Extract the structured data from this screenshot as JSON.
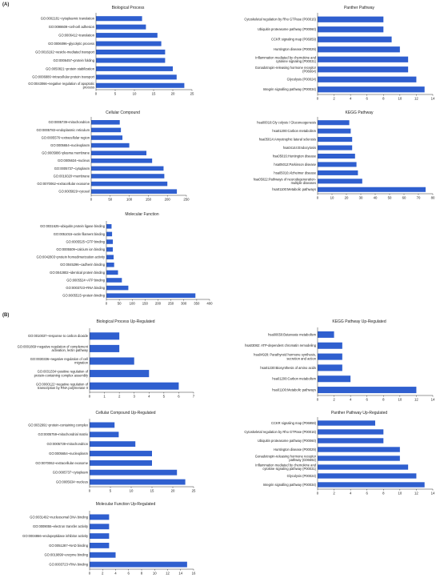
{
  "sections": {
    "a": "(A)",
    "b": "(B)"
  },
  "chart_data": [
    {
      "type": "bar",
      "orientation": "horizontal",
      "title": "Biological Process",
      "categories": [
        "GO:0002181~cytoplasmic translation",
        "GO:0098609~cell-cell adhesion",
        "GO:0006412~translation",
        "GO:0006096~glycolytic process",
        "GO:0016192~vesicle-mediated transport",
        "GO:0006457~protein folding",
        "GO:0050821~protein stabilization",
        "GO:0006886~intracellular protein transport",
        "GO:0043066~negative regulation of apoptotic process"
      ],
      "values": [
        12,
        13,
        16,
        17,
        18,
        18,
        20,
        21,
        23
      ],
      "ticks": [
        0,
        5,
        10,
        15,
        20,
        25
      ],
      "xlim": [
        0,
        25
      ],
      "color": "#2f5fcf"
    },
    {
      "type": "bar",
      "orientation": "horizontal",
      "title": "Panther Pathway",
      "categories": [
        "Cytoskeletal regulation by Rho GTPase (P00016)",
        "Ubiquitin proteasome pathway (P00060)",
        "CCKR signaling map (P06959)",
        "Huntington disease (P00029)",
        "Inflammation mediated by chemokine and cytokine signaling (P00031)",
        "Gonadotropin-releasing hormone receptor (P06664)",
        "Glycolysis (P00024)",
        "Integrin signalling pathway (P00034)"
      ],
      "values": [
        8,
        8,
        9,
        10,
        11,
        11,
        12,
        13
      ],
      "ticks": [
        0,
        2,
        4,
        6,
        8,
        10,
        12,
        14
      ],
      "xlim": [
        0,
        14
      ],
      "color": "#2f5fcf"
    },
    {
      "type": "bar",
      "orientation": "horizontal",
      "title": "Cellular Compound",
      "categories": [
        "GO:0005739~mitochondrion",
        "GO:0005783~endoplasmic reticulum",
        "GO:0005576~extracellular region",
        "GO:0005654~nucleoplasm",
        "GO:0005886~plasma membrane",
        "GO:0005634~nucleus",
        "GO:0005737~cytoplasm",
        "GO:0016020~membrane",
        "GO:0070062~extracellular exosome",
        "GO:0005829~cytosol"
      ],
      "values": [
        75,
        78,
        82,
        100,
        145,
        160,
        190,
        192,
        200,
        225
      ],
      "ticks": [
        0,
        50,
        100,
        150,
        200,
        250
      ],
      "xlim": [
        0,
        250
      ],
      "color": "#2f5fcf"
    },
    {
      "type": "bar",
      "orientation": "horizontal",
      "title": "KEGG Pathway",
      "categories": [
        "hsa00010:Gly colysis / Gluconeogenesis",
        "hsa01200:Carbon metabolism",
        "hsa05014:Amyotrophic lateral sclerosis",
        "hsa04144:Endocytosis",
        "hsa05016:Huntington disease",
        "hsa05012:Parkinson disease",
        "hsa05010:Alzheimer disease",
        "hsa05022:Pathways of neurodegeneration- multiple diseases",
        "hsa01100:Metabolic pathways"
      ],
      "values": [
        22,
        23,
        24,
        24,
        26,
        27,
        28,
        31,
        75
      ],
      "ticks": [
        0,
        10,
        20,
        30,
        40,
        50,
        60,
        70,
        80
      ],
      "xlim": [
        0,
        80
      ],
      "color": "#2f5fcf"
    },
    {
      "type": "bar",
      "orientation": "horizontal",
      "title": "Molecular Function",
      "categories": [
        "GO:0031625~ubiquitin protein ligase binding",
        "GO:0051015~actin filament binding",
        "GO:0005525~GTP binding",
        "GO:0005509~calcium ion binding",
        "GO:0042803~protein homodimerization activity",
        "GO:0045296~cadherin binding",
        "GO:0042802~identical protein binding",
        "GO:0005524~ATP binding",
        "GO:0003723~RNA binding",
        "GO:0005515~protein binding"
      ],
      "values": [
        20,
        22,
        25,
        25,
        28,
        30,
        45,
        60,
        85,
        345
      ],
      "ticks": [
        0,
        50,
        100,
        150,
        200,
        250,
        300,
        350,
        400
      ],
      "xlim": [
        0,
        400
      ],
      "color": "#2f5fcf"
    },
    {
      "type": "bar",
      "orientation": "horizontal",
      "title": "Biological Process Up-Regulated",
      "categories": [
        "GO:0010037~response to carbon dioxide",
        "GO:0001869~negative regulation of complement activation, lectin pathway",
        "GO:0030336~negative regulation of cell migration",
        "GO:0031334~positive regulation of protein-containing complex assembly",
        "GO:0000122~negative regulation of transcription by RNA polymerase II"
      ],
      "values": [
        2,
        2,
        3,
        4,
        6
      ],
      "ticks": [
        0,
        1,
        2,
        3,
        4,
        5,
        6,
        7
      ],
      "xlim": [
        0,
        7
      ],
      "color": "#2f5fcf"
    },
    {
      "type": "bar",
      "orientation": "horizontal",
      "title": "KEGG Pathway Up-Regulated",
      "categories": [
        "hsa00650:Butanoate metabolism",
        "hsa03082: ATP-dependent chromatin remodeling",
        "hsa04928: Parathyroid hormone synthesis, secretion and action",
        "hsa01230:Biosynthesis of amino acids",
        "hsa01200:Carbon metabolism",
        "hsa01100:Metabolic pathways"
      ],
      "values": [
        2,
        3,
        3,
        3,
        4,
        12
      ],
      "ticks": [
        0,
        2,
        4,
        6,
        8,
        10,
        12,
        14
      ],
      "xlim": [
        0,
        14
      ],
      "color": "#2f5fcf"
    },
    {
      "type": "bar",
      "orientation": "horizontal",
      "title": "Cellular Compound Up-Regulated",
      "categories": [
        "GO:0032991~protein-containing complex",
        "GO:0005759~mitochondrial matrix",
        "GO:0005739~mitochondrion",
        "GO:0005654~nucleoplasm",
        "GO:0070062~extracellular exosome",
        "GO:0005737~cytoplasm",
        "GO:0005634~nucleus"
      ],
      "values": [
        6,
        7,
        11,
        15,
        15,
        21,
        23
      ],
      "ticks": [
        0,
        5,
        10,
        15,
        20,
        25
      ],
      "xlim": [
        0,
        25
      ],
      "color": "#2f5fcf"
    },
    {
      "type": "bar",
      "orientation": "horizontal",
      "title": "Panther Pathway Up-Regulated",
      "categories": [
        "CCKR signaling map (P06959)",
        "Cytoskeletal regulation by Rho GTPase (P00016)",
        "Ubiquitin proteasome pathway (P00060)",
        "Huntington disease (P00029)",
        "Gonadotropin-releasing hormone receptor pathway (G06692)",
        "Inflammation mediated by chemokine and cytokine signaling pathway (P00031)",
        "Glycolysis (P00024)",
        "Integrin signalling pathway (P00034)"
      ],
      "values": [
        7,
        8,
        8,
        10,
        10,
        11,
        12,
        13
      ],
      "ticks": [
        0,
        2,
        4,
        6,
        8,
        10,
        12,
        14
      ],
      "xlim": [
        0,
        14
      ],
      "color": "#2f5fcf"
    },
    {
      "type": "bar",
      "orientation": "horizontal",
      "title": "Molecular Function Up-Regulated",
      "categories": [
        "GO:0031492~nucleosomal DNA binding",
        "GO:0009055~electron transfer activity",
        "GO:0004866~endopeptidase inhibitor activity",
        "GO:0051287~NAD binding",
        "GO:0019899~enzyme binding",
        "GO:0003723~RNA binding"
      ],
      "values": [
        3,
        3,
        3,
        3,
        4,
        15
      ],
      "ticks": [
        0,
        2,
        4,
        6,
        8,
        10,
        12,
        14,
        16
      ],
      "xlim": [
        0,
        16
      ],
      "color": "#2f5fcf"
    }
  ]
}
